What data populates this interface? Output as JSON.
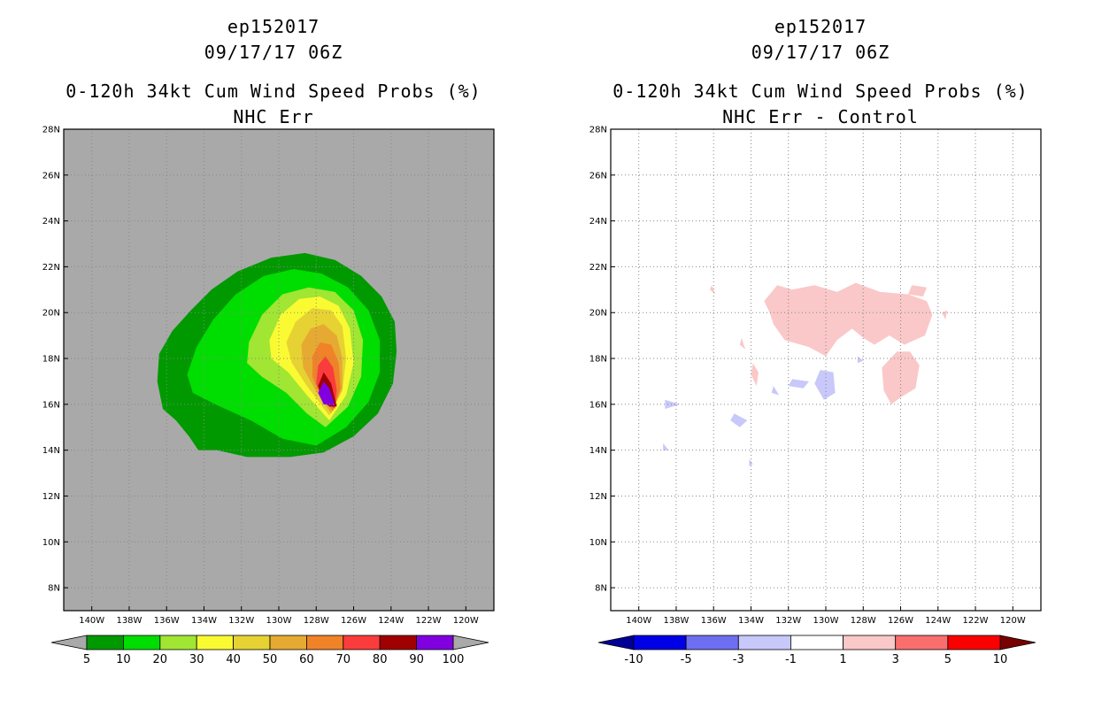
{
  "chart_data": [
    {
      "type": "heatmap",
      "id": "left",
      "title_lines": [
        "ep152017",
        "09/17/17 06Z",
        "0-120h 34kt Cum Wind Speed Probs (%)",
        "NHC Err"
      ],
      "xlabel": "",
      "ylabel": "",
      "xlim": [
        -141.5,
        -118.5
      ],
      "ylim": [
        7,
        28
      ],
      "x_ticks": [
        -140,
        -138,
        -136,
        -134,
        -132,
        -130,
        -128,
        -126,
        -124,
        -122,
        -120
      ],
      "x_tick_labels": [
        "140W",
        "138W",
        "136W",
        "134W",
        "132W",
        "130W",
        "128W",
        "126W",
        "124W",
        "122W",
        "120W"
      ],
      "y_ticks": [
        8,
        10,
        12,
        14,
        16,
        18,
        20,
        22,
        24,
        26,
        28
      ],
      "y_tick_labels": [
        "8N",
        "10N",
        "12N",
        "14N",
        "16N",
        "18N",
        "20N",
        "22N",
        "24N",
        "26N",
        "28N"
      ],
      "grid": true,
      "background": "#a9a9a9",
      "colorbar": {
        "levels": [
          "5",
          "10",
          "20",
          "30",
          "40",
          "50",
          "60",
          "70",
          "80",
          "90",
          "100"
        ],
        "colors": [
          "#009900",
          "#00dd00",
          "#a0e632",
          "#fafa32",
          "#e6d232",
          "#e6aa32",
          "#f08228",
          "#fa3c3c",
          "#a00000",
          "#8000e0"
        ],
        "under_color": "#a9a9a9",
        "over_color": "#a9a9a9"
      },
      "contours": [
        {
          "level": "5",
          "color": "#009900",
          "points": [
            [
              -134.3,
              14.0
            ],
            [
              -133.3,
              14.0
            ],
            [
              -131.7,
              13.7
            ],
            [
              -129.4,
              13.7
            ],
            [
              -127.6,
              13.9
            ],
            [
              -126.0,
              14.6
            ],
            [
              -124.7,
              15.6
            ],
            [
              -123.9,
              16.9
            ],
            [
              -123.7,
              18.3
            ],
            [
              -123.8,
              19.6
            ],
            [
              -124.5,
              20.7
            ],
            [
              -125.6,
              21.6
            ],
            [
              -127.0,
              22.3
            ],
            [
              -128.6,
              22.6
            ],
            [
              -130.4,
              22.4
            ],
            [
              -132.2,
              21.8
            ],
            [
              -133.6,
              21.0
            ],
            [
              -134.7,
              20.1
            ],
            [
              -135.7,
              19.2
            ],
            [
              -136.4,
              18.2
            ],
            [
              -136.5,
              17.0
            ],
            [
              -136.2,
              15.8
            ],
            [
              -135.5,
              15.3
            ],
            [
              -134.8,
              14.6
            ]
          ]
        },
        {
          "level": "10",
          "color": "#00dd00",
          "points": [
            [
              -128.0,
              14.2
            ],
            [
              -126.4,
              15.0
            ],
            [
              -125.2,
              16.1
            ],
            [
              -124.6,
              17.4
            ],
            [
              -124.6,
              18.8
            ],
            [
              -125.2,
              20.1
            ],
            [
              -126.3,
              21.1
            ],
            [
              -127.7,
              21.7
            ],
            [
              -129.2,
              21.9
            ],
            [
              -130.8,
              21.6
            ],
            [
              -132.3,
              20.8
            ],
            [
              -133.5,
              19.7
            ],
            [
              -134.4,
              18.5
            ],
            [
              -134.9,
              17.3
            ],
            [
              -134.6,
              16.5
            ],
            [
              -133.4,
              16.0
            ],
            [
              -131.5,
              15.3
            ],
            [
              -129.8,
              14.5
            ]
          ]
        },
        {
          "level": "20",
          "color": "#a0e632",
          "points": [
            [
              -127.5,
              15.0
            ],
            [
              -126.3,
              15.9
            ],
            [
              -125.6,
              17.2
            ],
            [
              -125.5,
              18.8
            ],
            [
              -126.0,
              20.1
            ],
            [
              -127.0,
              20.9
            ],
            [
              -128.4,
              21.1
            ],
            [
              -129.8,
              20.8
            ],
            [
              -130.9,
              19.9
            ],
            [
              -131.6,
              18.7
            ],
            [
              -131.7,
              17.8
            ],
            [
              -130.9,
              17.2
            ],
            [
              -129.6,
              16.5
            ],
            [
              -128.5,
              15.6
            ]
          ]
        },
        {
          "level": "30",
          "color": "#fafa32",
          "points": [
            [
              -127.3,
              15.3
            ],
            [
              -126.4,
              16.4
            ],
            [
              -126.0,
              17.8
            ],
            [
              -126.2,
              19.3
            ],
            [
              -126.8,
              20.3
            ],
            [
              -127.8,
              20.7
            ],
            [
              -128.9,
              20.6
            ],
            [
              -129.9,
              19.9
            ],
            [
              -130.5,
              18.8
            ],
            [
              -130.4,
              18.0
            ],
            [
              -129.5,
              17.4
            ],
            [
              -128.5,
              16.4
            ]
          ]
        },
        {
          "level": "40",
          "color": "#e6d232",
          "points": [
            [
              -127.3,
              15.5
            ],
            [
              -126.6,
              16.6
            ],
            [
              -126.4,
              18.0
            ],
            [
              -126.6,
              19.4
            ],
            [
              -127.2,
              20.1
            ],
            [
              -128.2,
              20.2
            ],
            [
              -129.1,
              19.6
            ],
            [
              -129.6,
              18.7
            ],
            [
              -129.3,
              17.8
            ],
            [
              -128.5,
              16.8
            ]
          ]
        },
        {
          "level": "50",
          "color": "#e6aa32",
          "points": [
            [
              -127.2,
              15.6
            ],
            [
              -126.6,
              16.7
            ],
            [
              -126.6,
              18.0
            ],
            [
              -126.9,
              19.0
            ],
            [
              -127.6,
              19.5
            ],
            [
              -128.3,
              19.3
            ],
            [
              -128.8,
              18.6
            ],
            [
              -128.7,
              17.6
            ],
            [
              -128.1,
              16.7
            ]
          ]
        },
        {
          "level": "60",
          "color": "#f08228",
          "points": [
            [
              -127.1,
              15.7
            ],
            [
              -126.7,
              16.7
            ],
            [
              -126.8,
              17.8
            ],
            [
              -127.2,
              18.6
            ],
            [
              -127.8,
              18.7
            ],
            [
              -128.2,
              18.1
            ],
            [
              -128.2,
              17.2
            ],
            [
              -127.8,
              16.4
            ]
          ]
        },
        {
          "level": "70",
          "color": "#fa3c3c",
          "points": [
            [
              -127.0,
              15.8
            ],
            [
              -126.9,
              16.6
            ],
            [
              -127.1,
              17.6
            ],
            [
              -127.5,
              18.1
            ],
            [
              -127.9,
              17.7
            ],
            [
              -128.0,
              16.9
            ],
            [
              -127.6,
              16.2
            ]
          ]
        },
        {
          "level": "80",
          "color": "#a00000",
          "points": [
            [
              -126.9,
              15.9
            ],
            [
              -127.2,
              16.9
            ],
            [
              -127.6,
              17.4
            ],
            [
              -127.9,
              16.8
            ],
            [
              -127.7,
              16.2
            ],
            [
              -127.3,
              15.9
            ]
          ]
        },
        {
          "level": "90",
          "color": "#8000e0",
          "points": [
            [
              -127.0,
              15.95
            ],
            [
              -127.3,
              16.7
            ],
            [
              -127.6,
              17.0
            ],
            [
              -127.9,
              16.5
            ],
            [
              -127.6,
              16.0
            ]
          ]
        }
      ]
    },
    {
      "type": "heatmap",
      "id": "right",
      "title_lines": [
        "ep152017",
        "09/17/17 06Z",
        "0-120h 34kt Cum Wind Speed Probs (%)",
        "NHC Err - Control"
      ],
      "xlabel": "",
      "ylabel": "",
      "xlim": [
        -141.5,
        -118.5
      ],
      "ylim": [
        7,
        28
      ],
      "x_ticks": [
        -140,
        -138,
        -136,
        -134,
        -132,
        -130,
        -128,
        -126,
        -124,
        -122,
        -120
      ],
      "x_tick_labels": [
        "140W",
        "138W",
        "136W",
        "134W",
        "132W",
        "130W",
        "128W",
        "126W",
        "124W",
        "122W",
        "120W"
      ],
      "y_ticks": [
        8,
        10,
        12,
        14,
        16,
        18,
        20,
        22,
        24,
        26,
        28
      ],
      "y_tick_labels": [
        "8N",
        "10N",
        "12N",
        "14N",
        "16N",
        "18N",
        "20N",
        "22N",
        "24N",
        "26N",
        "28N"
      ],
      "grid": true,
      "background": "#ffffff",
      "colorbar": {
        "levels": [
          "-10",
          "-5",
          "-3",
          "-1",
          "1",
          "3",
          "5",
          "10"
        ],
        "colors": [
          "#0000e6",
          "#6e6ef0",
          "#c8c8fa",
          "#ffffff",
          "#fac8c8",
          "#fa6e6e",
          "#fa0000"
        ],
        "under_color": "#000096",
        "over_color": "#780000"
      },
      "contours": [
        {
          "level": "1",
          "color": "#fac8c8",
          "points": [
            [
              -131.8,
              21.0
            ],
            [
              -130.6,
              21.2
            ],
            [
              -129.4,
              20.9
            ],
            [
              -128.4,
              21.3
            ],
            [
              -127.1,
              20.9
            ],
            [
              -125.6,
              20.8
            ],
            [
              -124.6,
              20.5
            ],
            [
              -124.3,
              19.9
            ],
            [
              -124.7,
              19.0
            ],
            [
              -125.8,
              18.6
            ],
            [
              -126.6,
              19.0
            ],
            [
              -127.4,
              18.6
            ],
            [
              -128.0,
              18.9
            ],
            [
              -128.6,
              19.3
            ],
            [
              -129.4,
              18.8
            ],
            [
              -130.0,
              18.1
            ],
            [
              -130.9,
              18.5
            ],
            [
              -132.2,
              18.8
            ],
            [
              -132.8,
              19.5
            ],
            [
              -133.0,
              20.0
            ],
            [
              -133.3,
              20.5
            ],
            [
              -132.6,
              21.2
            ]
          ]
        },
        {
          "level": "1",
          "color": "#fac8c8",
          "points": [
            [
              -126.2,
              18.3
            ],
            [
              -125.5,
              18.3
            ],
            [
              -125.0,
              17.7
            ],
            [
              -125.2,
              16.7
            ],
            [
              -126.0,
              16.3
            ],
            [
              -126.5,
              16.0
            ],
            [
              -126.9,
              16.6
            ],
            [
              -127.0,
              17.6
            ]
          ]
        },
        {
          "level": "1",
          "color": "#fac8c8",
          "points": [
            [
              -125.4,
              21.2
            ],
            [
              -124.6,
              21.1
            ],
            [
              -124.8,
              20.7
            ],
            [
              -125.6,
              20.8
            ]
          ]
        },
        {
          "level": "1",
          "color": "#fac8c8",
          "points": [
            [
              -133.9,
              17.8
            ],
            [
              -133.6,
              17.4
            ],
            [
              -133.7,
              16.8
            ],
            [
              -134.0,
              17.3
            ]
          ]
        },
        {
          "level": "1",
          "color": "#fac8c8",
          "points": [
            [
              -134.5,
              18.9
            ],
            [
              -134.3,
              18.4
            ],
            [
              -134.6,
              18.6
            ]
          ]
        },
        {
          "level": "1",
          "color": "#fac8c8",
          "points": [
            [
              -136.2,
              21.0
            ],
            [
              -135.9,
              20.8
            ],
            [
              -136.1,
              21.2
            ]
          ]
        },
        {
          "level": "1",
          "color": "#fac8c8",
          "points": [
            [
              -123.8,
              20.0
            ],
            [
              -123.6,
              19.7
            ],
            [
              -123.5,
              20.1
            ]
          ]
        },
        {
          "level": "-1",
          "color": "#c8c8fa",
          "points": [
            [
              -130.3,
              17.5
            ],
            [
              -129.6,
              17.4
            ],
            [
              -129.5,
              16.5
            ],
            [
              -130.1,
              16.2
            ],
            [
              -130.6,
              16.9
            ]
          ]
        },
        {
          "level": "-1",
          "color": "#c8c8fa",
          "points": [
            [
              -131.8,
              17.1
            ],
            [
              -130.9,
              17.0
            ],
            [
              -131.2,
              16.7
            ],
            [
              -132.0,
              16.8
            ]
          ]
        },
        {
          "level": "-1",
          "color": "#c8c8fa",
          "points": [
            [
              -132.8,
              16.8
            ],
            [
              -132.5,
              16.4
            ],
            [
              -132.9,
              16.5
            ]
          ]
        },
        {
          "level": "-1",
          "color": "#c8c8fa",
          "points": [
            [
              -134.9,
              15.6
            ],
            [
              -134.2,
              15.3
            ],
            [
              -134.6,
              15.0
            ],
            [
              -135.1,
              15.3
            ]
          ]
        },
        {
          "level": "-1",
          "color": "#c8c8fa",
          "points": [
            [
              -138.6,
              16.2
            ],
            [
              -137.8,
              16.0
            ],
            [
              -138.6,
              15.8
            ]
          ]
        },
        {
          "level": "-1",
          "color": "#c8c8fa",
          "points": [
            [
              -138.7,
              14.3
            ],
            [
              -138.4,
              14.0
            ],
            [
              -138.7,
              14.0
            ]
          ]
        },
        {
          "level": "-1",
          "color": "#c8c8fa",
          "points": [
            [
              -134.1,
              13.6
            ],
            [
              -133.9,
              13.4
            ],
            [
              -134.1,
              13.3
            ]
          ]
        },
        {
          "level": "-1",
          "color": "#c8c8fa",
          "points": [
            [
              -128.3,
              18.1
            ],
            [
              -128.0,
              17.9
            ],
            [
              -128.3,
              17.8
            ]
          ]
        }
      ]
    }
  ]
}
